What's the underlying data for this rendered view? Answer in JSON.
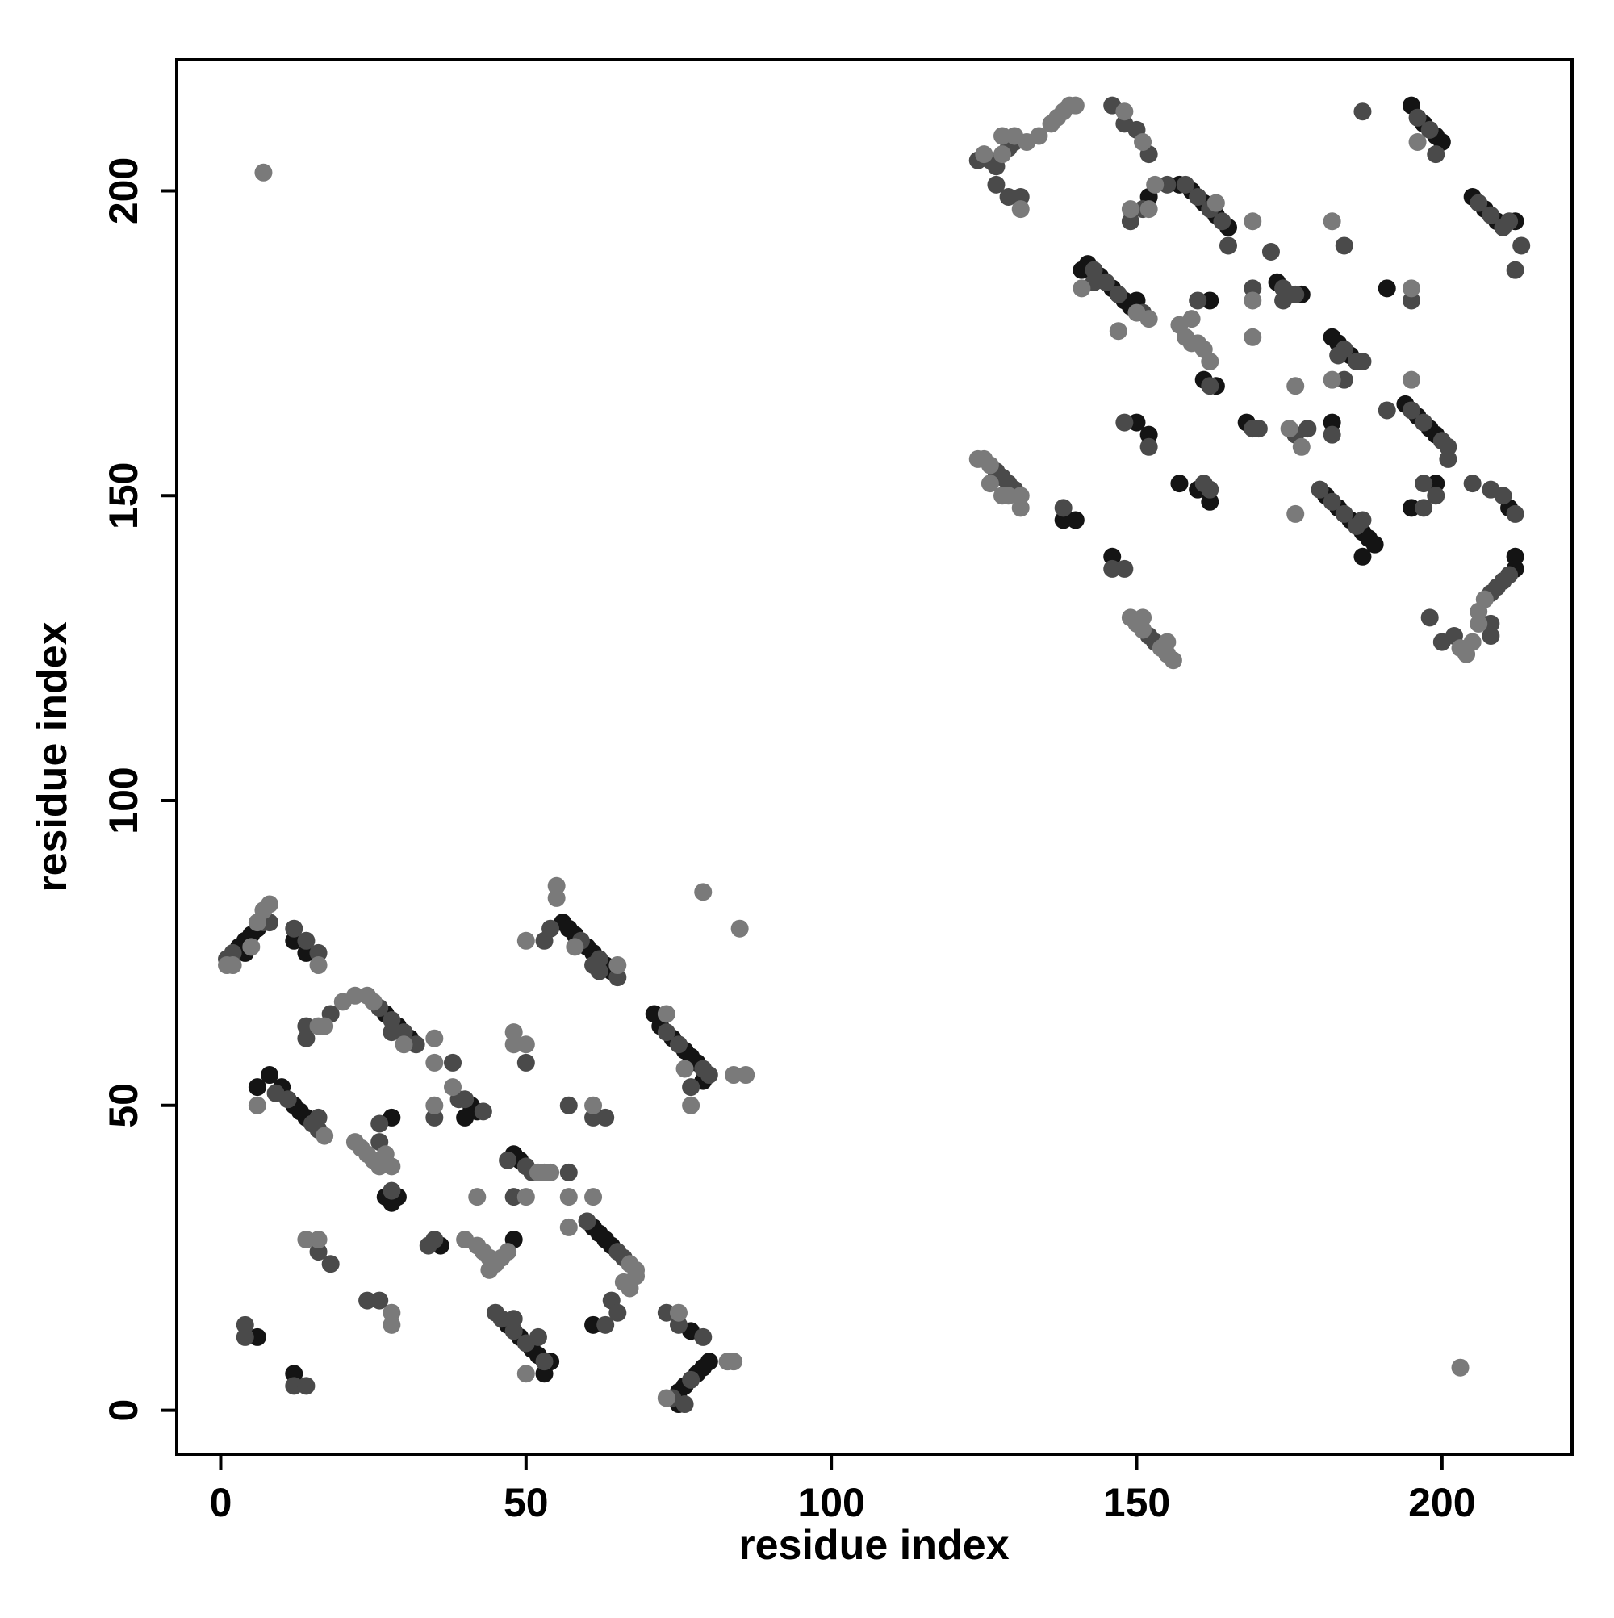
{
  "chart_data": {
    "type": "scatter",
    "xlabel": "residue index",
    "ylabel": "residue index",
    "xlim": [
      -7.2,
      221.3
    ],
    "ylim": [
      -7.2,
      221.5
    ],
    "xticks": [
      0,
      50,
      100,
      150,
      200
    ],
    "yticks": [
      0,
      50,
      100,
      150,
      200
    ],
    "series": [
      {
        "color": "#141414",
        "x": [
          3,
          4,
          5,
          6,
          4,
          12,
          14,
          6,
          8,
          10,
          12,
          13,
          14,
          27,
          29,
          31,
          41,
          42,
          40,
          27,
          28,
          29,
          28,
          36,
          48,
          49,
          48,
          56,
          57,
          58,
          60,
          61,
          63,
          64,
          71,
          72,
          74,
          76,
          77,
          78,
          79,
          61,
          62,
          63,
          64,
          61,
          6,
          12,
          47,
          49,
          51,
          52,
          53,
          54,
          75,
          76,
          78,
          79,
          80,
          75,
          77,
          138,
          140,
          141,
          142,
          144,
          146,
          148,
          149,
          150,
          152,
          146,
          150,
          152,
          157,
          159,
          161,
          163,
          165,
          162,
          161,
          163,
          157,
          160,
          162,
          168,
          173,
          175,
          177,
          182,
          182,
          183,
          185,
          181,
          183,
          185,
          187,
          188,
          189,
          187,
          195,
          197,
          199,
          200,
          191,
          194,
          196,
          198,
          199,
          195,
          199,
          205,
          207,
          209,
          212,
          211,
          212,
          212
        ],
        "values": [
          76,
          77,
          78,
          79,
          75,
          77,
          75,
          53,
          55,
          53,
          50,
          49,
          48,
          65,
          63,
          61,
          50,
          49,
          48,
          35,
          34,
          35,
          48,
          27,
          42,
          41,
          28,
          80,
          79,
          78,
          76,
          75,
          73,
          72,
          65,
          63,
          61,
          59,
          58,
          57,
          54,
          30,
          29,
          28,
          27,
          14,
          12,
          6,
          14,
          12,
          10,
          9,
          6,
          8,
          3,
          4,
          6,
          7,
          8,
          1,
          13,
          146,
          146,
          187,
          188,
          186,
          184,
          182,
          181,
          182,
          199,
          140,
          162,
          160,
          201,
          200,
          198,
          196,
          194,
          182,
          169,
          168,
          152,
          151,
          149,
          162,
          185,
          183,
          183,
          162,
          176,
          175,
          173,
          150,
          148,
          146,
          144,
          143,
          142,
          140,
          214,
          211,
          209,
          208,
          184,
          165,
          163,
          161,
          160,
          148,
          152,
          199,
          197,
          195,
          195,
          148,
          140,
          138
        ]
      },
      {
        "color": "#4a4a4a",
        "x": [
          1,
          2,
          7,
          8,
          12,
          14,
          16,
          9,
          11,
          15,
          16,
          16,
          14,
          14,
          18,
          26,
          28,
          30,
          32,
          28,
          38,
          39,
          40,
          43,
          35,
          26,
          26,
          28,
          34,
          35,
          50,
          57,
          47,
          50,
          51,
          53,
          54,
          59,
          62,
          65,
          61,
          62,
          73,
          75,
          79,
          80,
          77,
          48,
          60,
          65,
          66,
          63,
          64,
          65,
          61,
          63,
          57,
          16,
          18,
          26,
          24,
          4,
          4,
          12,
          14,
          45,
          46,
          48,
          50,
          52,
          48,
          53,
          76,
          74,
          77,
          75,
          79,
          73,
          124,
          126,
          127,
          129,
          130,
          127,
          129,
          131,
          127,
          128,
          129,
          130,
          138,
          143,
          145,
          147,
          151,
          143,
          146,
          148,
          150,
          152,
          149,
          151,
          155,
          158,
          160,
          162,
          164,
          165,
          148,
          152,
          146,
          148,
          153,
          152,
          160,
          162,
          162,
          161,
          169,
          170,
          172,
          174,
          176,
          174,
          169,
          178,
          176,
          184,
          186,
          187,
          183,
          184,
          184,
          182,
          180,
          182,
          184,
          186,
          187,
          187,
          196,
          198,
          199,
          195,
          191,
          195,
          197,
          200,
          201,
          201,
          197,
          197,
          199,
          206,
          208,
          210,
          211,
          213,
          212,
          205,
          208,
          210,
          212,
          211,
          210,
          209,
          208,
          208,
          208,
          200,
          202,
          198
        ],
        "values": [
          74,
          75,
          80,
          80,
          79,
          77,
          75,
          52,
          51,
          47,
          48,
          46,
          63,
          61,
          65,
          66,
          64,
          62,
          60,
          62,
          57,
          51,
          51,
          49,
          48,
          47,
          44,
          36,
          27,
          28,
          57,
          50,
          41,
          40,
          39,
          77,
          79,
          77,
          74,
          71,
          73,
          72,
          62,
          60,
          56,
          55,
          53,
          35,
          31,
          26,
          25,
          14,
          18,
          16,
          48,
          48,
          39,
          26,
          24,
          18,
          18,
          14,
          12,
          4,
          4,
          16,
          15,
          13,
          11,
          12,
          15,
          8,
          1,
          2,
          5,
          14,
          12,
          16,
          205,
          205,
          204,
          207,
          208,
          201,
          199,
          199,
          154,
          153,
          152,
          151,
          148,
          187,
          185,
          183,
          180,
          185,
          214,
          211,
          210,
          206,
          195,
          197,
          201,
          201,
          199,
          197,
          195,
          191,
          162,
          158,
          138,
          138,
          126,
          127,
          182,
          168,
          151,
          152,
          161,
          161,
          190,
          184,
          183,
          182,
          184,
          161,
          160,
          174,
          172,
          172,
          173,
          191,
          169,
          160,
          151,
          149,
          147,
          145,
          146,
          213,
          212,
          210,
          206,
          182,
          164,
          164,
          162,
          159,
          158,
          156,
          148,
          152,
          150,
          198,
          196,
          194,
          195,
          191,
          187,
          152,
          151,
          150,
          147,
          137,
          136,
          135,
          134,
          129,
          127,
          126,
          127,
          130
        ]
      },
      {
        "color": "#7a7a7a",
        "x": [
          1,
          2,
          5,
          6,
          8,
          7,
          16,
          6,
          17,
          16,
          17,
          20,
          22,
          24,
          25,
          30,
          35,
          35,
          38,
          35,
          22,
          23,
          24,
          25,
          26,
          27,
          28,
          42,
          48,
          48,
          50,
          50,
          55,
          55,
          58,
          65,
          73,
          76,
          77,
          84,
          86,
          79,
          85,
          52,
          53,
          54,
          50,
          57,
          57,
          61,
          67,
          68,
          68,
          66,
          67,
          61,
          40,
          42,
          43,
          44,
          45,
          46,
          47,
          44,
          14,
          16,
          28,
          28,
          50,
          73,
          84,
          83,
          75,
          7,
          203,
          125,
          128,
          132,
          134,
          136,
          137,
          138,
          139,
          140,
          128,
          130,
          131,
          124,
          125,
          126,
          131,
          131,
          129,
          126,
          128,
          141,
          150,
          152,
          147,
          148,
          151,
          149,
          153,
          152,
          163,
          169,
          149,
          150,
          151,
          154,
          155,
          156,
          151,
          155,
          157,
          158,
          159,
          160,
          161,
          162,
          159,
          169,
          169,
          176,
          175,
          177,
          176,
          182,
          182,
          195,
          195,
          196,
          205,
          204,
          203,
          206,
          206,
          207
        ],
        "values": [
          73,
          73,
          76,
          80,
          83,
          82,
          73,
          50,
          45,
          63,
          63,
          67,
          68,
          68,
          67,
          60,
          61,
          57,
          53,
          50,
          44,
          43,
          42,
          41,
          40,
          42,
          40,
          35,
          62,
          60,
          60,
          77,
          86,
          84,
          76,
          73,
          65,
          56,
          50,
          55,
          55,
          85,
          79,
          39,
          39,
          39,
          35,
          35,
          30,
          35,
          24,
          23,
          22,
          21,
          20,
          50,
          28,
          27,
          26,
          25,
          24,
          25,
          26,
          23,
          28,
          28,
          16,
          14,
          6,
          2,
          8,
          8,
          16,
          203,
          7,
          206,
          206,
          208,
          209,
          211,
          212,
          213,
          214,
          214,
          209,
          209,
          197,
          156,
          156,
          155,
          150,
          148,
          150,
          152,
          150,
          184,
          180,
          179,
          177,
          213,
          208,
          197,
          201,
          197,
          198,
          195,
          130,
          129,
          128,
          125,
          124,
          123,
          130,
          126,
          178,
          176,
          175,
          175,
          174,
          172,
          179,
          182,
          176,
          168,
          161,
          158,
          147,
          195,
          169,
          184,
          169,
          208,
          126,
          124,
          125,
          131,
          129,
          133
        ]
      }
    ]
  }
}
